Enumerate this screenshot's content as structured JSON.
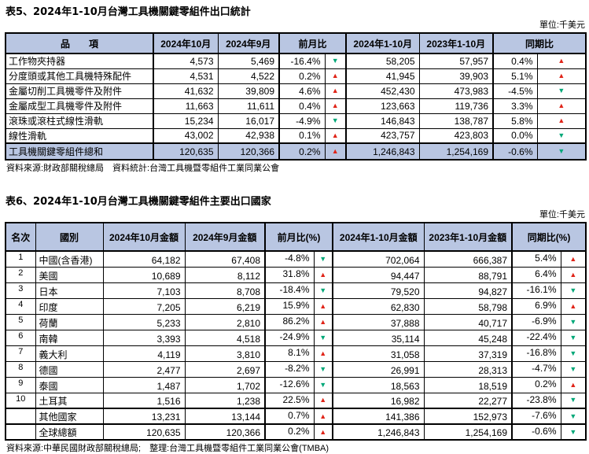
{
  "glyphs": {
    "up": "▲",
    "down": "▼"
  },
  "colors": {
    "header_bg": "#b9c6e2",
    "up_red": "#e02418",
    "down_green": "#00a878",
    "border": "#000000"
  },
  "table5": {
    "title": "表5、2024年1-10月台灣工具機關鍵零組件出口統計",
    "unit": "單位:千美元",
    "headers": {
      "item": "品　　項",
      "oct": "2024年10月",
      "sep": "2024年9月",
      "mom": "前月比",
      "ytd2024": "2024年1-10月",
      "ytd2023": "2023年1-10月",
      "yoy": "同期比"
    },
    "rows": [
      {
        "item": "工作物夾持器",
        "oct": "4,573",
        "sep": "5,469",
        "mom": "-16.4%",
        "mom_dir": "down",
        "ytd2024": "58,205",
        "ytd2023": "57,957",
        "yoy": "0.4%",
        "yoy_dir": "up"
      },
      {
        "item": "分度頭或其他工具機特殊配件",
        "oct": "4,531",
        "sep": "4,522",
        "mom": "0.2%",
        "mom_dir": "up",
        "ytd2024": "41,945",
        "ytd2023": "39,903",
        "yoy": "5.1%",
        "yoy_dir": "up"
      },
      {
        "item": "金屬切削工具機零件及附件",
        "oct": "41,632",
        "sep": "39,809",
        "mom": "4.6%",
        "mom_dir": "up",
        "ytd2024": "452,430",
        "ytd2023": "473,983",
        "yoy": "-4.5%",
        "yoy_dir": "down"
      },
      {
        "item": "金屬成型工具機零件及附件",
        "oct": "11,663",
        "sep": "11,611",
        "mom": "0.4%",
        "mom_dir": "up",
        "ytd2024": "123,663",
        "ytd2023": "119,736",
        "yoy": "3.3%",
        "yoy_dir": "up"
      },
      {
        "item": "滾珠或滾柱式線性滑軌",
        "oct": "15,234",
        "sep": "16,017",
        "mom": "-4.9%",
        "mom_dir": "down",
        "ytd2024": "146,843",
        "ytd2023": "138,787",
        "yoy": "5.8%",
        "yoy_dir": "up"
      },
      {
        "item": "線性滑軌",
        "oct": "43,002",
        "sep": "42,938",
        "mom": "0.1%",
        "mom_dir": "up",
        "ytd2024": "423,757",
        "ytd2023": "423,803",
        "yoy": "0.0%",
        "yoy_dir": "down"
      }
    ],
    "total": {
      "item": "工具機關鍵零組件總和",
      "oct": "120,635",
      "sep": "120,366",
      "mom": "0.2%",
      "mom_dir": "up",
      "ytd2024": "1,246,843",
      "ytd2023": "1,254,169",
      "yoy": "-0.6%",
      "yoy_dir": "down"
    },
    "source": "資料來源:財政部關稅總局　資料統計:台灣工具機暨零組件工業同業公會"
  },
  "table6": {
    "title": "表6、2024年1-10月台灣工具機關鍵零組件主要出口國家",
    "unit": "單位:千美元",
    "headers": {
      "rank": "名次",
      "country": "國別",
      "oct": "2024年10月金額",
      "sep": "2024年9月金額",
      "mom": "前月比(%)",
      "ytd2024": "2024年1-10月金額",
      "ytd2023": "2023年1-10月金額",
      "yoy": "同期比(%)"
    },
    "rows": [
      {
        "rank": "1",
        "country": "中國(含香港)",
        "oct": "64,182",
        "sep": "67,408",
        "mom": "-4.8%",
        "mom_dir": "down",
        "ytd2024": "702,064",
        "ytd2023": "666,387",
        "yoy": "5.4%",
        "yoy_dir": "up"
      },
      {
        "rank": "2",
        "country": "美國",
        "oct": "10,689",
        "sep": "8,112",
        "mom": "31.8%",
        "mom_dir": "up",
        "ytd2024": "94,447",
        "ytd2023": "88,791",
        "yoy": "6.4%",
        "yoy_dir": "up"
      },
      {
        "rank": "3",
        "country": "日本",
        "oct": "7,103",
        "sep": "8,708",
        "mom": "-18.4%",
        "mom_dir": "down",
        "ytd2024": "79,520",
        "ytd2023": "94,827",
        "yoy": "-16.1%",
        "yoy_dir": "down"
      },
      {
        "rank": "4",
        "country": "印度",
        "oct": "7,205",
        "sep": "6,219",
        "mom": "15.9%",
        "mom_dir": "up",
        "ytd2024": "62,830",
        "ytd2023": "58,798",
        "yoy": "6.9%",
        "yoy_dir": "up"
      },
      {
        "rank": "5",
        "country": "荷蘭",
        "oct": "5,233",
        "sep": "2,810",
        "mom": "86.2%",
        "mom_dir": "up",
        "ytd2024": "37,888",
        "ytd2023": "40,717",
        "yoy": "-6.9%",
        "yoy_dir": "down"
      },
      {
        "rank": "6",
        "country": "南韓",
        "oct": "3,393",
        "sep": "4,518",
        "mom": "-24.9%",
        "mom_dir": "down",
        "ytd2024": "35,114",
        "ytd2023": "45,248",
        "yoy": "-22.4%",
        "yoy_dir": "down"
      },
      {
        "rank": "7",
        "country": "義大利",
        "oct": "4,119",
        "sep": "3,810",
        "mom": "8.1%",
        "mom_dir": "up",
        "ytd2024": "31,058",
        "ytd2023": "37,319",
        "yoy": "-16.8%",
        "yoy_dir": "down"
      },
      {
        "rank": "8",
        "country": "德國",
        "oct": "2,477",
        "sep": "2,697",
        "mom": "-8.2%",
        "mom_dir": "down",
        "ytd2024": "26,991",
        "ytd2023": "28,313",
        "yoy": "-4.7%",
        "yoy_dir": "down"
      },
      {
        "rank": "9",
        "country": "泰國",
        "oct": "1,487",
        "sep": "1,702",
        "mom": "-12.6%",
        "mom_dir": "down",
        "ytd2024": "18,563",
        "ytd2023": "18,519",
        "yoy": "0.2%",
        "yoy_dir": "up"
      },
      {
        "rank": "10",
        "country": "土耳其",
        "oct": "1,516",
        "sep": "1,238",
        "mom": "22.5%",
        "mom_dir": "up",
        "ytd2024": "16,982",
        "ytd2023": "22,277",
        "yoy": "-23.8%",
        "yoy_dir": "down"
      },
      {
        "rank": "",
        "country": "其他國家",
        "oct": "13,231",
        "sep": "13,144",
        "mom": "0.7%",
        "mom_dir": "up",
        "ytd2024": "141,386",
        "ytd2023": "152,973",
        "yoy": "-7.6%",
        "yoy_dir": "down"
      },
      {
        "rank": "",
        "country": "全球總額",
        "oct": "120,635",
        "sep": "120,366",
        "mom": "0.2%",
        "mom_dir": "up",
        "ytd2024": "1,246,843",
        "ytd2023": "1,254,169",
        "yoy": "-0.6%",
        "yoy_dir": "down"
      }
    ],
    "source": "資料來源:中華民國財政部關稅總局;　整理:台灣工具機暨零組件工業同業公會(TMBA)"
  }
}
